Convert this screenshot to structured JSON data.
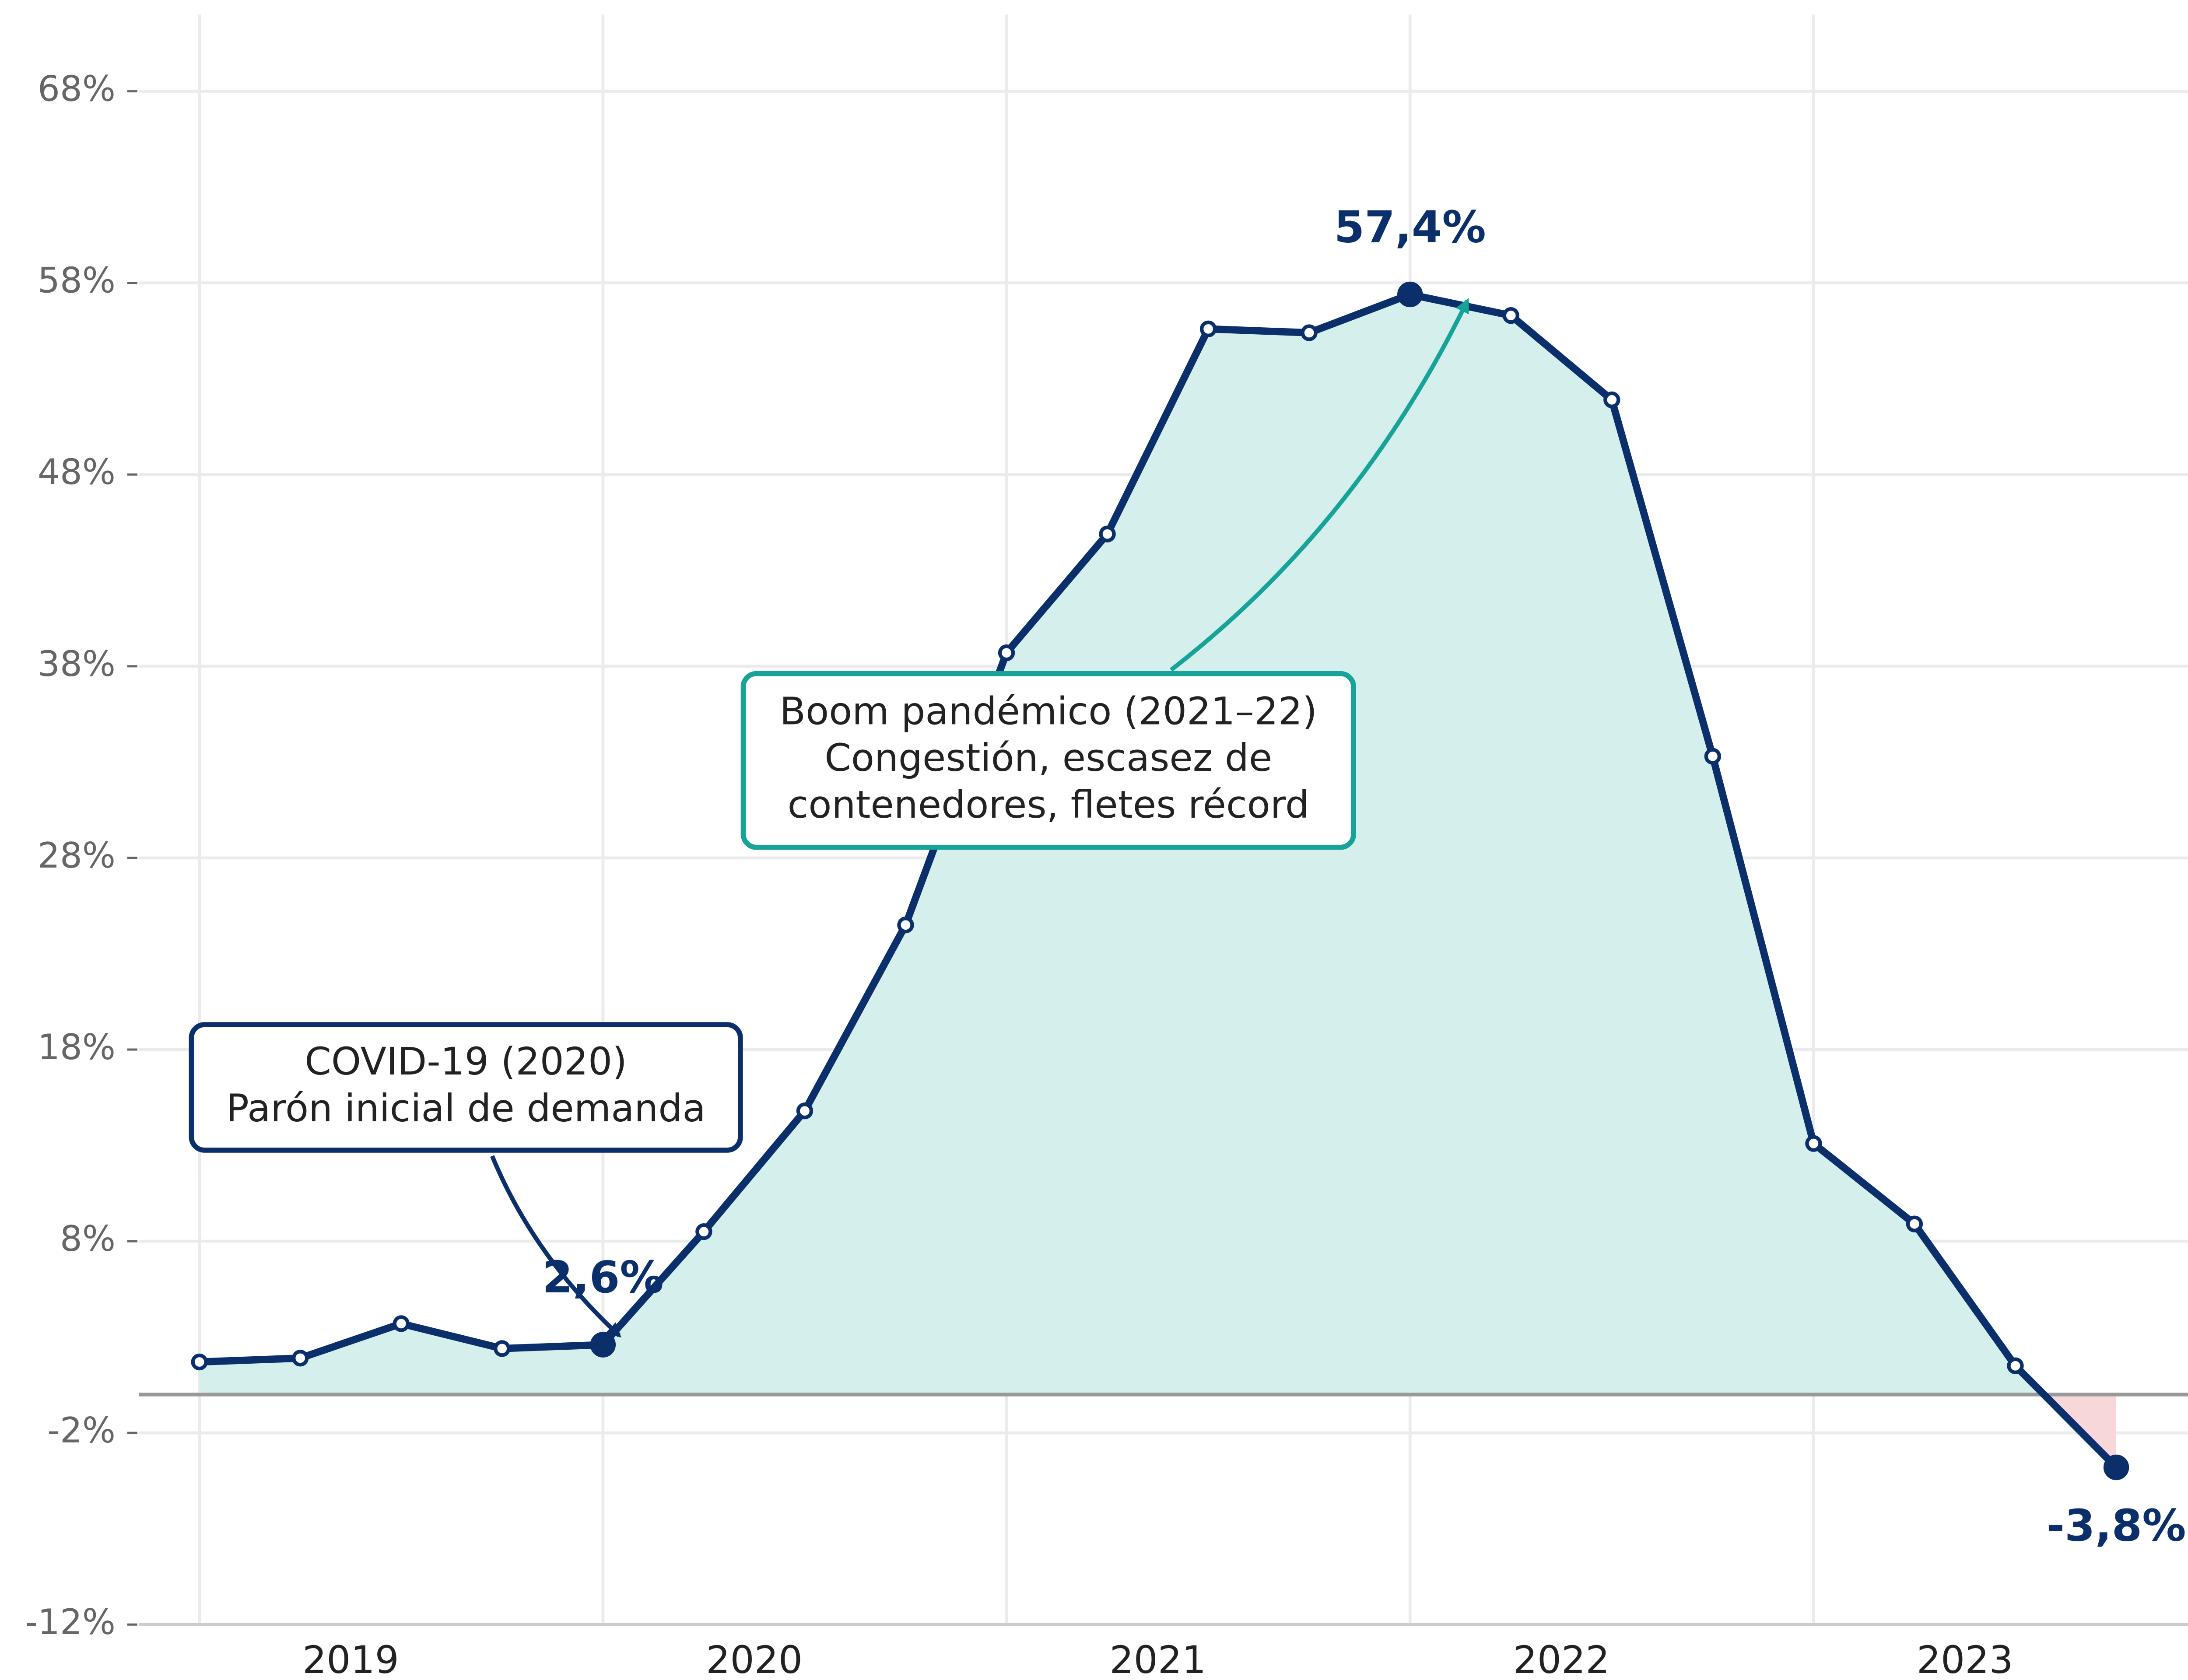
{
  "chart_data": {
    "type": "line",
    "x": [
      2019,
      2019.25,
      2019.5,
      2019.75,
      2020,
      2020.25,
      2020.5,
      2020.75,
      2021,
      2021.25,
      2021.5,
      2021.75,
      2022,
      2022.25,
      2022.5,
      2022.75,
      2023,
      2023.25,
      2023.5,
      2023.75,
      2024
    ],
    "series": [
      {
        "color": "#0b2f6b",
        "values": [
          1.7,
          1.9,
          3.7,
          2.4,
          2.6,
          8.5,
          14.8,
          24.5,
          38.7,
          44.9,
          55.6,
          55.4,
          57.4,
          56.3,
          51.9,
          33.3,
          13.1,
          8.9,
          1.5,
          -3.8,
          null
        ],
        "value_labels": [
          null,
          null,
          null,
          null,
          "2,6%",
          null,
          null,
          null,
          null,
          null,
          null,
          null,
          "57,4%",
          null,
          null,
          null,
          null,
          null,
          null,
          "-3,8%",
          null
        ]
      }
    ],
    "positive_fill": "#d5efed",
    "negative_fill": "#f8d7da",
    "xlim": [
      2018.85,
      2024.15
    ],
    "xticks": [
      {
        "value": 2019,
        "label": "2019"
      },
      {
        "value": 2020,
        "label": "2020"
      },
      {
        "value": 2021,
        "label": "2021"
      },
      {
        "value": 2022,
        "label": "2022"
      },
      {
        "value": 2023,
        "label": "2023"
      }
    ],
    "ylim": [
      -12,
      72
    ],
    "yticks": [
      {
        "value": -12,
        "label": "-12%"
      },
      {
        "value": -2,
        "label": "-2%"
      },
      {
        "value": 8,
        "label": "8%"
      },
      {
        "value": 18,
        "label": "18%"
      },
      {
        "value": 28,
        "label": "28%"
      },
      {
        "value": 38,
        "label": "38%"
      },
      {
        "value": 48,
        "label": "48%"
      },
      {
        "value": 58,
        "label": "58%"
      },
      {
        "value": 68,
        "label": "68%"
      }
    ],
    "grid": true,
    "annotations": [
      {
        "lines": [
          "COVID-19 (2020)",
          "Parón inicial de demanda"
        ],
        "color": "#0b2f6b"
      },
      {
        "lines": [
          "Boom pandémico (2021–22)",
          "Congestión, escasez de",
          "contenedores, fletes récord"
        ],
        "color": "#17a398"
      }
    ]
  }
}
